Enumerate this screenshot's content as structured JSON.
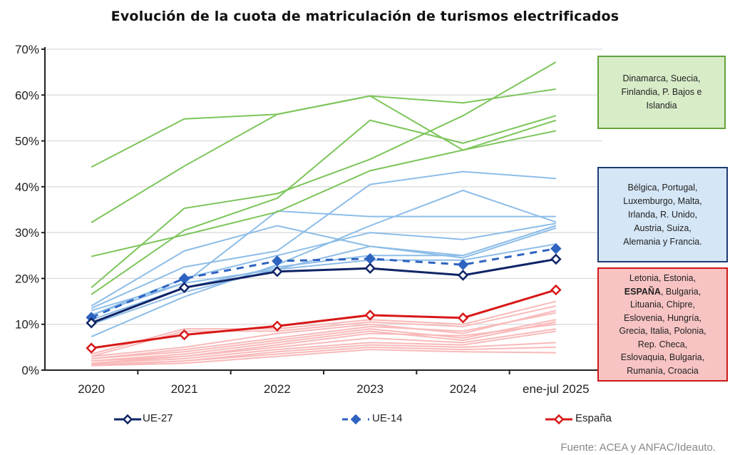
{
  "chart_data": {
    "type": "line",
    "title": "Evolución de la cuota de matriculación de turismos electrificados",
    "xlabel": "",
    "ylabel": "",
    "categories": [
      "2020",
      "2021",
      "2022",
      "2023",
      "2024",
      "ene-jul 2025"
    ],
    "ylim": [
      0,
      70
    ],
    "yticks": [
      "0%",
      "10%",
      "20%",
      "30%",
      "40%",
      "50%",
      "60%",
      "70%"
    ],
    "grid": true,
    "legend_position": "bottom",
    "colors": {
      "green": "#7cc55a",
      "blue": "#8dbde8",
      "pink": "#f9b9b9",
      "ue27": "#0f2466",
      "ue14": "#2e63c0",
      "espana": "#d81818"
    },
    "series": [
      {
        "name": "UE-27",
        "style": "solid-hollow-diamond",
        "color": "#0f2466",
        "values": [
          10.3,
          18.0,
          21.5,
          22.2,
          20.7,
          24.2
        ]
      },
      {
        "name": "UE-14",
        "style": "dashed-filled-diamond",
        "color": "#2e63c0",
        "values": [
          11.5,
          20.0,
          23.8,
          24.3,
          23.0,
          26.5
        ]
      },
      {
        "name": "España",
        "style": "solid-hollow-diamond",
        "color": "#d81818",
        "values": [
          4.8,
          7.7,
          9.6,
          12.0,
          11.4,
          17.5
        ]
      }
    ],
    "background_groups": [
      {
        "group": "green",
        "label": "Dinamarca, Suecia, Finlandia, P. Bajos e Islandia",
        "lines": [
          [
            44.3,
            54.8,
            55.8,
            59.8,
            58.3,
            61.3
          ],
          [
            32.2,
            44.5,
            55.8,
            59.8,
            48.0,
            54.5
          ],
          [
            16.5,
            30.5,
            37.5,
            54.5,
            49.5,
            55.5
          ],
          [
            18.0,
            35.3,
            38.5,
            46.0,
            55.5,
            67.2
          ],
          [
            24.8,
            29.5,
            34.5,
            43.5,
            48.0,
            52.2
          ]
        ]
      },
      {
        "group": "blue",
        "label": "Bélgica, Portugal, Luxemburgo, Malta, Irlanda, R. Unido, Austria, Suiza, Alemania y Francia.",
        "lines": [
          [
            14.0,
            26.0,
            31.5,
            27.0,
            25.0,
            31.5
          ],
          [
            13.5,
            22.5,
            26.0,
            40.5,
            43.3,
            41.8
          ],
          [
            7.3,
            16.0,
            23.0,
            31.5,
            39.2,
            32.3
          ],
          [
            13.0,
            19.0,
            34.7,
            33.5,
            33.5,
            33.5
          ],
          [
            12.0,
            20.0,
            25.0,
            30.0,
            28.5,
            32.0
          ],
          [
            12.0,
            19.0,
            22.0,
            27.0,
            24.5,
            31.0
          ],
          [
            11.0,
            18.0,
            22.5,
            25.0,
            25.0,
            31.5
          ],
          [
            10.0,
            17.0,
            22.0,
            24.0,
            24.0,
            27.5
          ]
        ]
      },
      {
        "group": "pink",
        "label_lines": [
          "Letonia, Estonia,",
          "ESPAÑA",
          ", Bulgaria,",
          "Lituania, Chipre,",
          "Eslovenia, Hungría,",
          "Grecia, Italia, Polonia,",
          "Rep. Checa,",
          "Eslovaquia, Bulgaria,",
          "Rumanía, Croacia"
        ],
        "lines": [
          [
            3.5,
            9.0,
            9.0,
            11.0,
            10.0,
            15.0
          ],
          [
            3.0,
            8.5,
            8.5,
            10.5,
            9.5,
            14.0
          ],
          [
            3.0,
            5.0,
            8.0,
            10.0,
            8.0,
            13.0
          ],
          [
            2.5,
            4.5,
            7.0,
            9.5,
            8.5,
            12.5
          ],
          [
            2.5,
            4.0,
            6.5,
            9.0,
            7.0,
            11.0
          ],
          [
            2.0,
            3.5,
            6.0,
            8.5,
            6.5,
            10.5
          ],
          [
            2.0,
            3.0,
            5.5,
            8.0,
            7.5,
            10.0
          ],
          [
            1.5,
            3.0,
            5.0,
            7.0,
            6.0,
            9.0
          ],
          [
            1.5,
            2.5,
            4.5,
            6.0,
            5.5,
            8.5
          ],
          [
            1.2,
            2.0,
            4.0,
            5.5,
            5.0,
            6.0
          ],
          [
            1.0,
            2.0,
            3.5,
            5.0,
            4.5,
            5.0
          ],
          [
            1.0,
            1.5,
            3.0,
            4.5,
            4.0,
            3.8
          ]
        ]
      }
    ],
    "source": "Fuente: ACEA y ANFAC/Ideauto."
  },
  "boxes": {
    "green": [
      "Dinamarca, Suecia,",
      "Finlandia, P. Bajos e",
      "Islandia"
    ],
    "blue": [
      "Bélgica, Portugal,",
      "Luxemburgo, Malta,",
      "Irlanda, R. Unido,",
      "Austria, Suiza,",
      "Alemania y Francia."
    ],
    "red_first": "Letonia, Estonia,",
    "red_bold": "ESPAÑA",
    "red_after_bold": ", Bulgaria,",
    "red_rest": [
      "Lituania, Chipre,",
      "Eslovenia, Hungría,",
      "Grecia, Italia, Polonia,",
      "Rep. Checa,",
      "Eslovaquia, Bulgaria,",
      "Rumanía, Croacia"
    ]
  }
}
